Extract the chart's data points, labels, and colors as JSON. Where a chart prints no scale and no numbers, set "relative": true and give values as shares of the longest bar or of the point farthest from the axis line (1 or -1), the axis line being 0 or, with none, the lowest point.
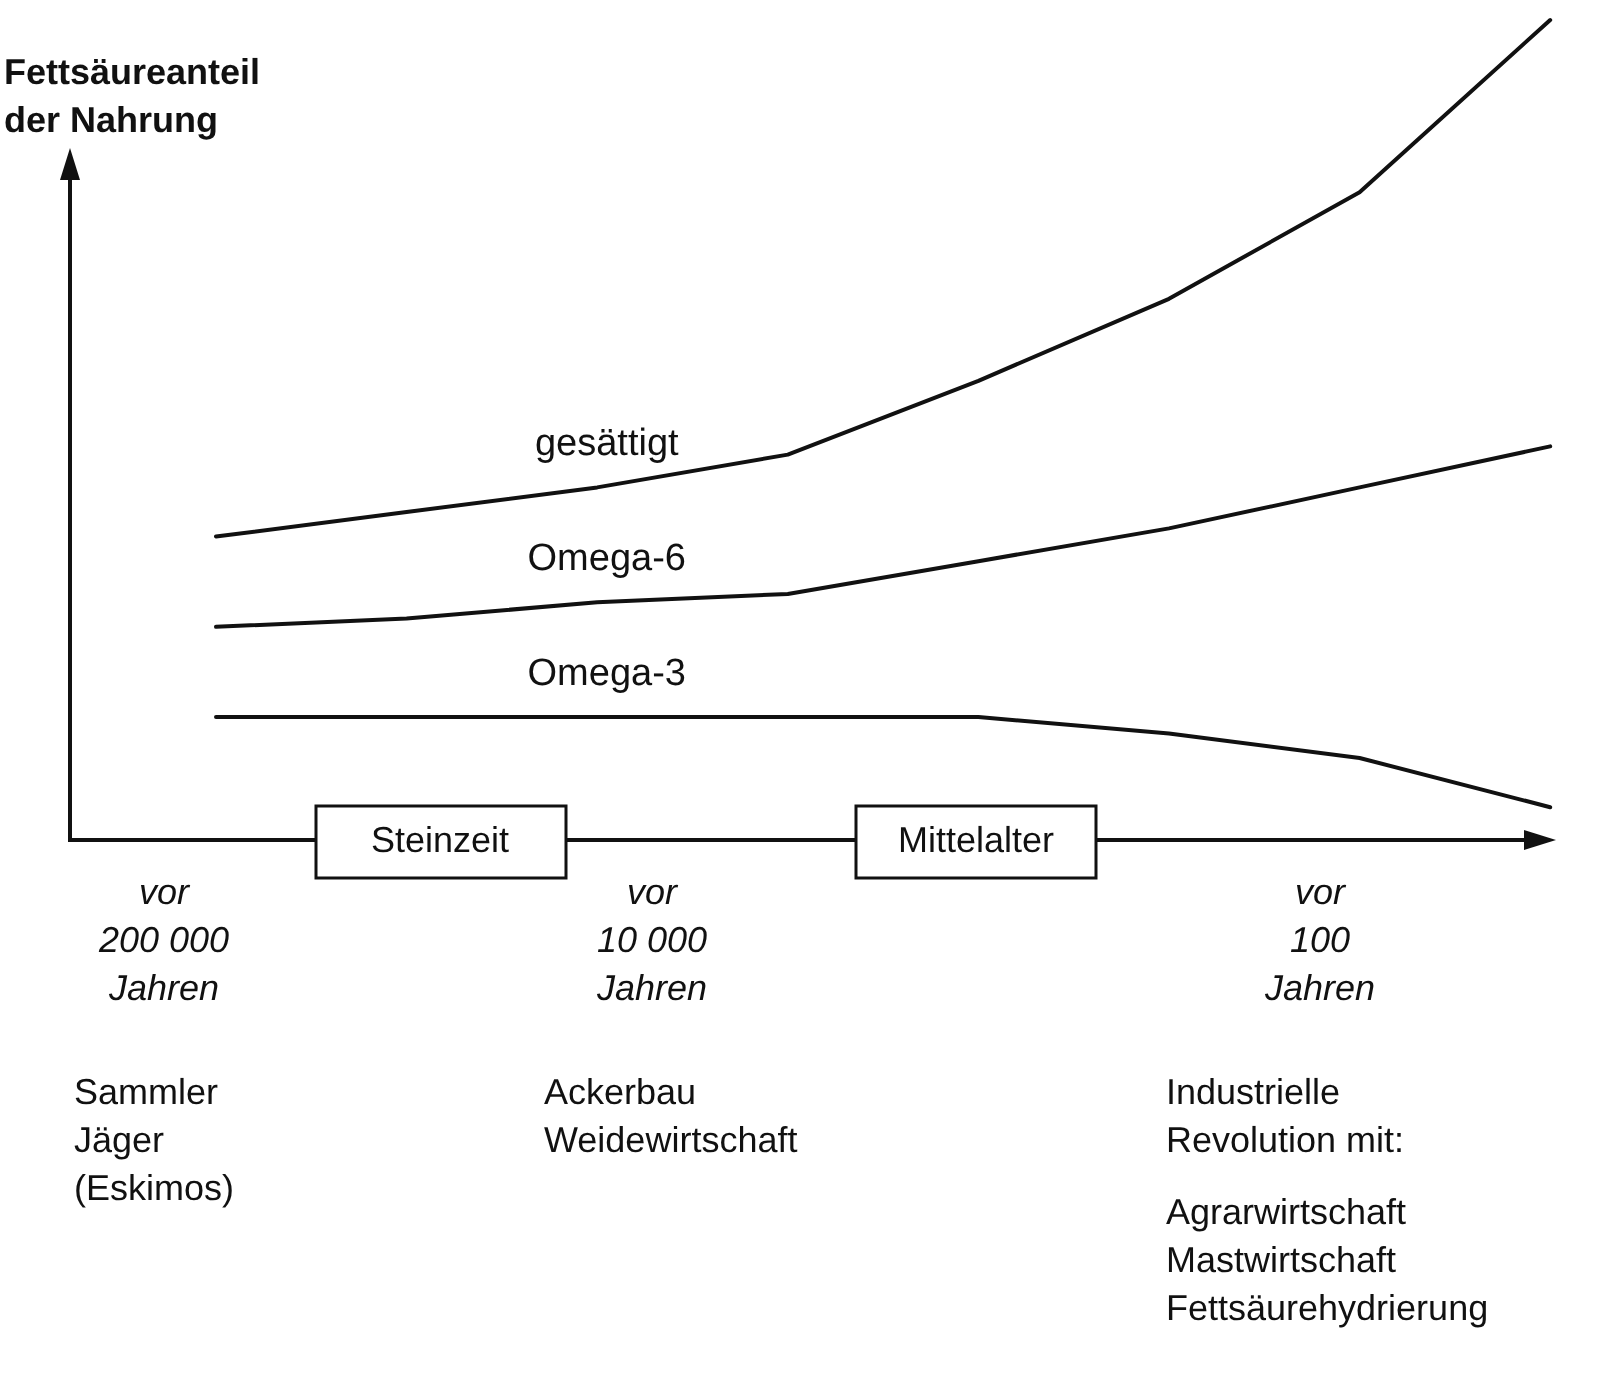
{
  "chart_data": {
    "type": "line",
    "relative": true,
    "ylabel": "Fettsäureanteil der Nahrung",
    "categories": [
      null,
      null,
      null,
      null,
      null,
      null,
      null,
      null
    ],
    "series": [
      {
        "name": "gesättigt",
        "color": "#111111",
        "values": [
          0.37,
          0.4,
          0.43,
          0.47,
          0.56,
          0.66,
          0.79,
          1
        ]
      },
      {
        "name": "Omega-6",
        "color": "#111111",
        "values": [
          0.26,
          0.27,
          0.29,
          0.3,
          0.34,
          0.38,
          0.43,
          0.48
        ]
      },
      {
        "name": "Omega-3",
        "color": "#111111",
        "values": [
          0.15,
          0.15,
          0.15,
          0.15,
          0.15,
          0.13,
          0.1,
          0.04
        ]
      }
    ],
    "annotations": [
      "Steinzeit",
      "Mittelalter",
      "vor\n200 000\nJahren",
      "vor\n10 000\nJahren",
      "vor\n100\nJahren",
      "Sammler\nJäger\n(Eskimos)",
      "Ackerbau\nWeidewirtschaft",
      "Industrielle\nRevolution mit:",
      "Agrarwirtschaft\nMastwirtschaft\nFettsäurehydrierung"
    ]
  }
}
